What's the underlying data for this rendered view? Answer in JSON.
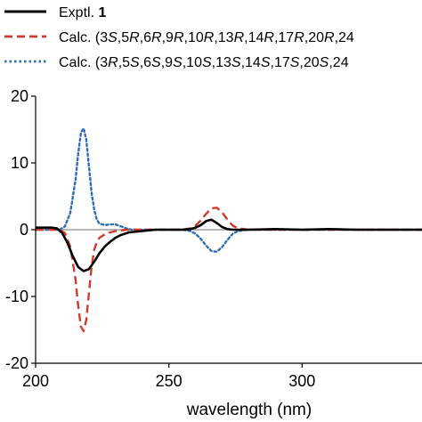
{
  "chart_data": {
    "type": "line",
    "xlabel": "wavelength (nm)",
    "ylabel": "",
    "xlim": [
      200,
      345
    ],
    "ylim": [
      -20,
      20
    ],
    "x_ticks": [
      {
        "value": 200,
        "label": "200"
      },
      {
        "value": 250,
        "label": "250"
      },
      {
        "value": 300,
        "label": "300"
      }
    ],
    "y_ticks": [
      {
        "value": 20,
        "label": "20"
      },
      {
        "value": 10,
        "label": "10"
      },
      {
        "value": 0,
        "label": "0"
      },
      {
        "value": -10,
        "label": "-10"
      },
      {
        "value": -20,
        "label": "-20"
      }
    ],
    "legend_position": "top",
    "series": [
      {
        "name": "Exptl. 1",
        "name_parts": [
          {
            "text": "Exptl. ",
            "style": "normal"
          },
          {
            "text": "1",
            "style": "bold"
          }
        ],
        "color": "#000000",
        "dash": "solid",
        "x": [
          200,
          203,
          206,
          208,
          210,
          212,
          214,
          216,
          218,
          220,
          222,
          224,
          226,
          228,
          230,
          232,
          235,
          240,
          245,
          250,
          255,
          258,
          260,
          262,
          264,
          266,
          268,
          270,
          272,
          274,
          276,
          280,
          290,
          300,
          310,
          320,
          330,
          340,
          345
        ],
        "y": [
          0.3,
          0.3,
          0.3,
          0.2,
          -0.5,
          -2.0,
          -4.0,
          -5.6,
          -6.2,
          -5.9,
          -4.8,
          -3.5,
          -2.5,
          -1.8,
          -1.2,
          -0.8,
          -0.4,
          -0.2,
          0,
          0,
          0,
          0.1,
          0.3,
          0.7,
          1.3,
          1.5,
          1.0,
          0.4,
          0.1,
          0,
          0,
          0,
          0.1,
          0,
          0.1,
          0,
          0,
          0,
          0
        ]
      },
      {
        "name": "Calc. (3S,5R,6R,9R,10R,13R,14R,17R,20R,24",
        "name_parts": [
          {
            "text": "Calc. (3",
            "style": "normal"
          },
          {
            "text": "S",
            "style": "italic"
          },
          {
            "text": ",5",
            "style": "normal"
          },
          {
            "text": "R",
            "style": "italic"
          },
          {
            "text": ",6",
            "style": "normal"
          },
          {
            "text": "R",
            "style": "italic"
          },
          {
            "text": ",9",
            "style": "normal"
          },
          {
            "text": "R",
            "style": "italic"
          },
          {
            "text": ",10",
            "style": "normal"
          },
          {
            "text": "R",
            "style": "italic"
          },
          {
            "text": ",13",
            "style": "normal"
          },
          {
            "text": "R",
            "style": "italic"
          },
          {
            "text": ",14",
            "style": "normal"
          },
          {
            "text": "R",
            "style": "italic"
          },
          {
            "text": ",17",
            "style": "normal"
          },
          {
            "text": "R",
            "style": "italic"
          },
          {
            "text": ",20",
            "style": "normal"
          },
          {
            "text": "R",
            "style": "italic"
          },
          {
            "text": ",24",
            "style": "normal"
          }
        ],
        "color": "#d13a2a",
        "dash": "dashed",
        "x": [
          200,
          205,
          209,
          211,
          213,
          215,
          216,
          217,
          218,
          219,
          220,
          221,
          222,
          223,
          224,
          226,
          228,
          230,
          232,
          234,
          236,
          240,
          250,
          255,
          258,
          260,
          262,
          264,
          266,
          268,
          270,
          272,
          274,
          276,
          280,
          290,
          300,
          310,
          320,
          330,
          340,
          345
        ],
        "y": [
          0,
          0,
          0,
          -0.5,
          -2.5,
          -7.5,
          -11.5,
          -14.5,
          -15.2,
          -13.5,
          -9.5,
          -5.5,
          -3.0,
          -1.8,
          -1.2,
          -0.7,
          -0.4,
          -0.2,
          -0.1,
          0,
          0,
          0,
          0,
          0,
          0.2,
          0.6,
          1.4,
          2.4,
          3.2,
          3.3,
          2.6,
          1.5,
          0.6,
          0.2,
          0,
          0,
          0,
          0,
          0,
          0,
          0,
          0
        ]
      },
      {
        "name": "Calc. (3R,5S,6S,9S,10S,13S,14S,17S,20S,24",
        "name_parts": [
          {
            "text": "Calc. (3",
            "style": "normal"
          },
          {
            "text": "R",
            "style": "italic"
          },
          {
            "text": ",5",
            "style": "normal"
          },
          {
            "text": "S",
            "style": "italic"
          },
          {
            "text": ",6",
            "style": "normal"
          },
          {
            "text": "S",
            "style": "italic"
          },
          {
            "text": ",9",
            "style": "normal"
          },
          {
            "text": "S",
            "style": "italic"
          },
          {
            "text": ",10",
            "style": "normal"
          },
          {
            "text": "S",
            "style": "italic"
          },
          {
            "text": ",13",
            "style": "normal"
          },
          {
            "text": "S",
            "style": "italic"
          },
          {
            "text": ",14",
            "style": "normal"
          },
          {
            "text": "S",
            "style": "italic"
          },
          {
            "text": ",17",
            "style": "normal"
          },
          {
            "text": "S",
            "style": "italic"
          },
          {
            "text": ",20",
            "style": "normal"
          },
          {
            "text": "S",
            "style": "italic"
          },
          {
            "text": ",24",
            "style": "normal"
          }
        ],
        "color": "#2f6fb5",
        "dash": "dotted",
        "x": [
          200,
          205,
          209,
          211,
          213,
          215,
          216,
          217,
          218,
          219,
          220,
          221,
          222,
          223,
          224,
          226,
          228,
          230,
          232,
          234,
          236,
          240,
          250,
          255,
          258,
          260,
          262,
          264,
          266,
          268,
          270,
          272,
          274,
          276,
          280,
          290,
          300,
          310,
          320,
          330,
          340,
          345
        ],
        "y": [
          0,
          0,
          0,
          0.5,
          2.5,
          7.5,
          11.5,
          14.5,
          15.2,
          13.5,
          9.5,
          5.5,
          3.0,
          1.5,
          0.9,
          0.7,
          0.8,
          0.8,
          0.5,
          0.2,
          0,
          0,
          0,
          0,
          -0.2,
          -0.6,
          -1.4,
          -2.4,
          -3.2,
          -3.3,
          -2.6,
          -1.5,
          -0.6,
          -0.2,
          0,
          0,
          0,
          0,
          0,
          0,
          0,
          0
        ]
      }
    ]
  }
}
